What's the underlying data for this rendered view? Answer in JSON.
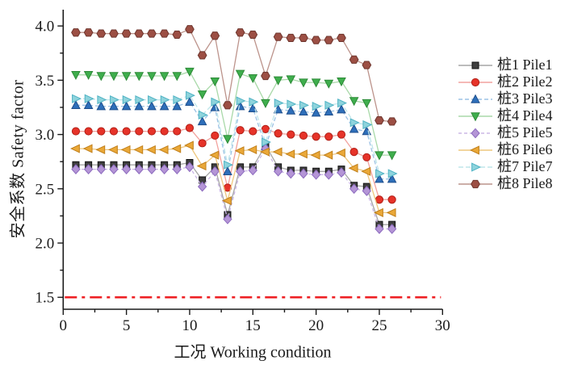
{
  "chart_data": {
    "type": "line",
    "title": "",
    "xlabel": "工况 Working condition",
    "ylabel": "安全系数 Safety factor",
    "xlim": [
      0,
      30
    ],
    "ylim": [
      1.39,
      4.15
    ],
    "x_ticks": [
      0,
      5,
      10,
      15,
      20,
      25,
      30
    ],
    "y_ticks": [
      1.5,
      2.0,
      2.5,
      3.0,
      3.5,
      4.0
    ],
    "x_minor_step": 2.5,
    "y_minor_step": 0.25,
    "grid": false,
    "legend_position": "right",
    "axis_color": "#1a1a1a",
    "x": [
      1,
      2,
      3,
      4,
      5,
      6,
      7,
      8,
      9,
      10,
      11,
      12,
      13,
      14,
      15,
      16,
      17,
      18,
      19,
      20,
      21,
      22,
      23,
      24,
      25,
      26
    ],
    "reference_line": {
      "y": 1.5,
      "color": "#ee2024",
      "style": "dash-dot"
    },
    "series": [
      {
        "name": "桩1 Pile1",
        "marker": "square",
        "color": "#3f3f3f",
        "edge": "#111111",
        "line_color": "#a6a6a6",
        "dash": "",
        "values": [
          2.72,
          2.72,
          2.72,
          2.72,
          2.72,
          2.72,
          2.72,
          2.72,
          2.72,
          2.74,
          2.58,
          2.7,
          2.26,
          2.7,
          2.7,
          2.9,
          2.7,
          2.67,
          2.67,
          2.66,
          2.66,
          2.68,
          2.53,
          2.52,
          2.17,
          2.17
        ]
      },
      {
        "name": "桩2 Pile2",
        "marker": "circle",
        "color": "#e63329",
        "edge": "#b01f17",
        "line_color": "#f2a29d",
        "dash": "",
        "values": [
          3.03,
          3.03,
          3.03,
          3.03,
          3.03,
          3.03,
          3.03,
          3.03,
          3.03,
          3.06,
          2.92,
          2.99,
          2.51,
          3.04,
          3.03,
          3.05,
          3.01,
          3.0,
          2.99,
          2.98,
          2.98,
          3.0,
          2.84,
          2.79,
          2.4,
          2.4
        ]
      },
      {
        "name": "桩3 Pile3",
        "marker": "triangle-up",
        "color": "#2e6fba",
        "edge": "#1f4f8c",
        "line_color": "#9cc2e5",
        "dash": "5 3",
        "values": [
          3.27,
          3.27,
          3.26,
          3.26,
          3.26,
          3.26,
          3.26,
          3.26,
          3.26,
          3.3,
          3.12,
          3.25,
          2.66,
          3.26,
          3.24,
          2.89,
          3.23,
          3.22,
          3.21,
          3.2,
          3.21,
          3.23,
          3.05,
          3.03,
          2.59,
          2.59
        ]
      },
      {
        "name": "桩4 Pile4",
        "marker": "triangle-down",
        "color": "#3fae4d",
        "edge": "#2c8a37",
        "line_color": "#a9d9a9",
        "dash": "",
        "values": [
          3.55,
          3.55,
          3.54,
          3.54,
          3.54,
          3.54,
          3.54,
          3.54,
          3.54,
          3.58,
          3.37,
          3.49,
          2.96,
          3.56,
          3.52,
          3.29,
          3.5,
          3.51,
          3.48,
          3.48,
          3.47,
          3.49,
          3.31,
          3.29,
          2.81,
          2.81
        ]
      },
      {
        "name": "桩5 Pile5",
        "marker": "diamond",
        "color": "#b495d6",
        "edge": "#8d6bbf",
        "line_color": "#cbb7e6",
        "dash": "4 3",
        "values": [
          2.68,
          2.68,
          2.68,
          2.68,
          2.68,
          2.68,
          2.68,
          2.68,
          2.68,
          2.7,
          2.52,
          2.66,
          2.22,
          2.66,
          2.67,
          2.87,
          2.66,
          2.64,
          2.64,
          2.63,
          2.63,
          2.65,
          2.5,
          2.48,
          2.13,
          2.13
        ]
      },
      {
        "name": "桩6 Pile6",
        "marker": "triangle-left",
        "color": "#eaa838",
        "edge": "#c07f1a",
        "line_color": "#eec77e",
        "dash": "",
        "values": [
          2.87,
          2.87,
          2.86,
          2.86,
          2.86,
          2.86,
          2.86,
          2.86,
          2.87,
          2.9,
          2.71,
          2.81,
          2.39,
          2.85,
          2.86,
          2.84,
          2.84,
          2.82,
          2.82,
          2.81,
          2.81,
          2.83,
          2.69,
          2.66,
          2.28,
          2.28
        ]
      },
      {
        "name": "桩7 Pile7",
        "marker": "triangle-right",
        "color": "#8ed3dc",
        "edge": "#4fb3c4",
        "line_color": "#bfe6ea",
        "dash": "6 3",
        "values": [
          3.33,
          3.33,
          3.32,
          3.32,
          3.32,
          3.32,
          3.32,
          3.32,
          3.32,
          3.36,
          3.18,
          3.3,
          2.72,
          3.31,
          3.3,
          2.93,
          3.29,
          3.28,
          3.27,
          3.26,
          3.27,
          3.29,
          3.11,
          3.09,
          2.64,
          2.64
        ]
      },
      {
        "name": "桩8 Pile8",
        "marker": "hexagon",
        "color": "#9c4f44",
        "edge": "#6e352d",
        "line_color": "#bc938b",
        "dash": "",
        "values": [
          3.94,
          3.94,
          3.93,
          3.93,
          3.93,
          3.93,
          3.93,
          3.93,
          3.92,
          3.97,
          3.73,
          3.91,
          3.27,
          3.94,
          3.92,
          3.54,
          3.9,
          3.89,
          3.89,
          3.87,
          3.87,
          3.89,
          3.69,
          3.64,
          3.13,
          3.12
        ]
      }
    ]
  }
}
